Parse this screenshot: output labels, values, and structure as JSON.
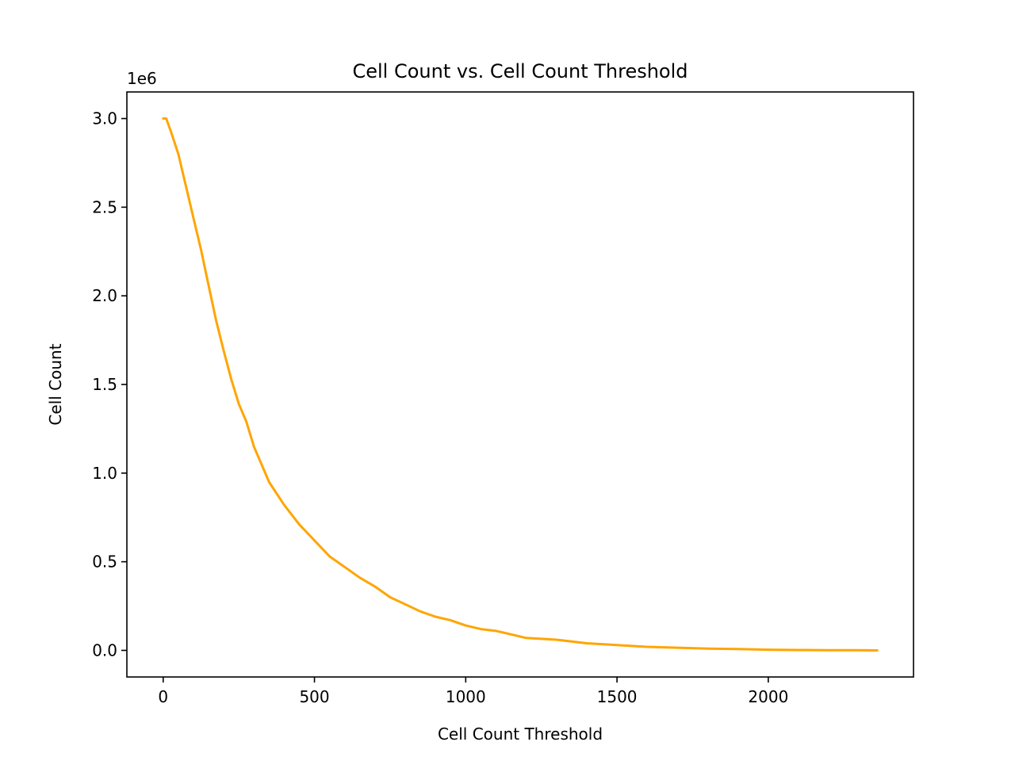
{
  "chart_data": {
    "type": "line",
    "title": "Cell Count vs. Cell Count Threshold",
    "xlabel": "Cell Count Threshold",
    "ylabel": "Cell Count",
    "y_offset_label": "1e6",
    "xlim": [
      -120,
      2480
    ],
    "ylim": [
      -0.15,
      3.15
    ],
    "xticks": [
      0,
      500,
      1000,
      1500,
      2000
    ],
    "xtick_labels": [
      "0",
      "500",
      "1000",
      "1500",
      "2000"
    ],
    "yticks": [
      0.0,
      0.5,
      1.0,
      1.5,
      2.0,
      2.5,
      3.0
    ],
    "ytick_labels": [
      "0.0",
      "0.5",
      "1.0",
      "1.5",
      "2.0",
      "2.5",
      "3.0"
    ],
    "grid": false,
    "series": [
      {
        "color": "#ffa500",
        "x": [
          0,
          10,
          25,
          50,
          75,
          100,
          125,
          150,
          175,
          200,
          225,
          250,
          275,
          300,
          350,
          400,
          450,
          500,
          550,
          600,
          650,
          700,
          750,
          800,
          850,
          900,
          950,
          1000,
          1050,
          1100,
          1150,
          1200,
          1250,
          1300,
          1350,
          1400,
          1450,
          1500,
          1550,
          1600,
          1700,
          1800,
          1900,
          2000,
          2100,
          2200,
          2300,
          2360
        ],
        "y": [
          3.0,
          3.0,
          2.93,
          2.8,
          2.62,
          2.44,
          2.26,
          2.06,
          1.86,
          1.69,
          1.53,
          1.39,
          1.29,
          1.15,
          0.95,
          0.82,
          0.71,
          0.62,
          0.53,
          0.47,
          0.41,
          0.36,
          0.3,
          0.26,
          0.22,
          0.19,
          0.17,
          0.14,
          0.12,
          0.11,
          0.09,
          0.07,
          0.065,
          0.06,
          0.05,
          0.04,
          0.035,
          0.03,
          0.025,
          0.02,
          0.015,
          0.01,
          0.008,
          0.004,
          0.002,
          0.001,
          0.0005,
          0.0
        ]
      }
    ]
  }
}
